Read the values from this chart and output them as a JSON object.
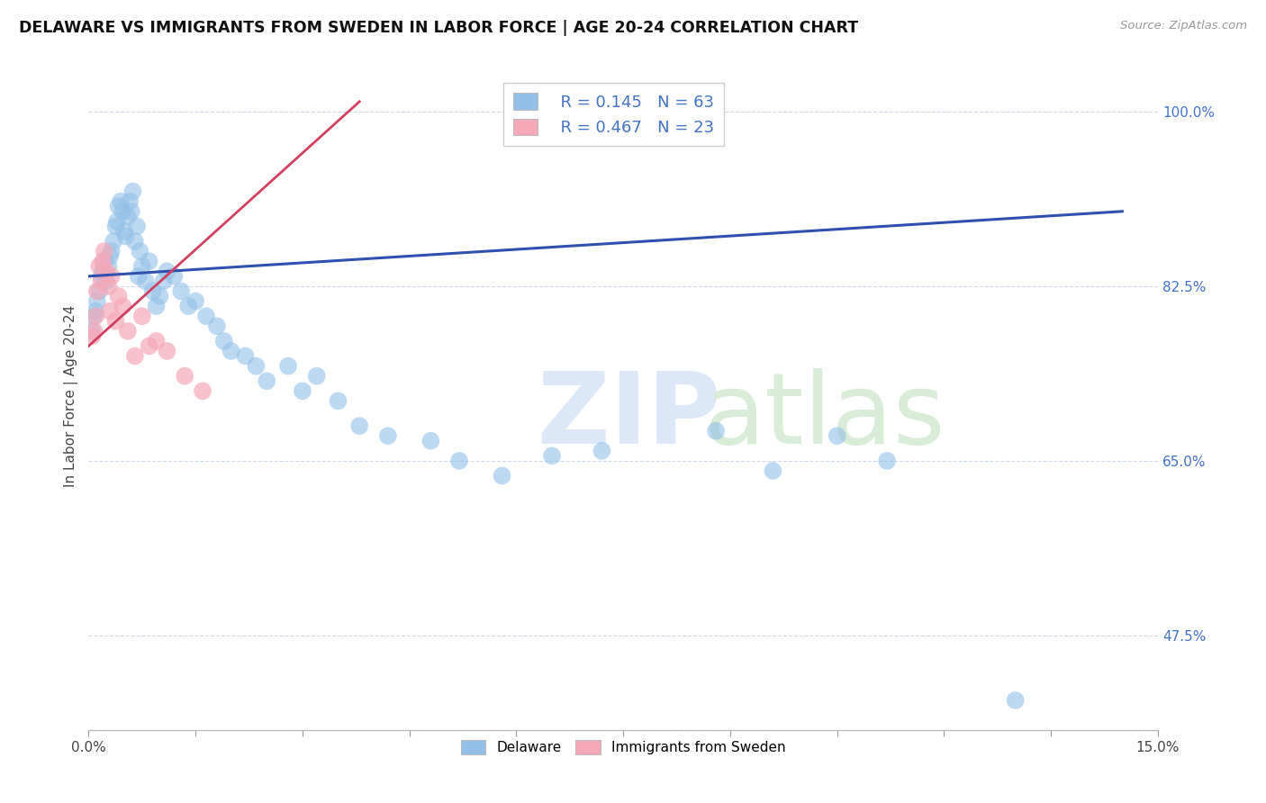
{
  "title": "DELAWARE VS IMMIGRANTS FROM SWEDEN IN LABOR FORCE | AGE 20-24 CORRELATION CHART",
  "source": "Source: ZipAtlas.com",
  "ylabel": "In Labor Force | Age 20-24",
  "xlim": [
    0.0,
    15.0
  ],
  "ylim": [
    38.0,
    105.0
  ],
  "yticks_right": [
    47.5,
    65.0,
    82.5,
    100.0
  ],
  "ytick_right_labels": [
    "47.5%",
    "65.0%",
    "82.5%",
    "100.0%"
  ],
  "blue_color": "#92c0e8",
  "pink_color": "#f5a8b8",
  "blue_line_color": "#3050b0",
  "pink_line_color": "#d04060",
  "background_color": "#ffffff",
  "grid_color": "#c8d4e8",
  "blue_scatter_x": [
    0.05,
    0.08,
    0.1,
    0.12,
    0.15,
    0.18,
    0.2,
    0.22,
    0.25,
    0.28,
    0.3,
    0.32,
    0.35,
    0.38,
    0.4,
    0.42,
    0.45,
    0.48,
    0.5,
    0.52,
    0.55,
    0.58,
    0.6,
    0.62,
    0.65,
    0.68,
    0.7,
    0.72,
    0.75,
    0.8,
    0.85,
    0.9,
    0.95,
    1.0,
    1.05,
    1.1,
    1.2,
    1.3,
    1.4,
    1.5,
    1.65,
    1.8,
    1.9,
    2.0,
    2.2,
    2.35,
    2.5,
    2.8,
    3.0,
    3.2,
    3.5,
    3.8,
    4.2,
    4.8,
    5.2,
    5.8,
    6.5,
    7.2,
    8.8,
    9.6,
    10.5,
    11.2,
    13.0
  ],
  "blue_scatter_y": [
    78.0,
    79.5,
    80.0,
    81.0,
    82.0,
    83.5,
    84.0,
    85.0,
    83.0,
    84.5,
    85.5,
    86.0,
    87.0,
    88.5,
    89.0,
    90.5,
    91.0,
    90.0,
    88.0,
    87.5,
    89.5,
    91.0,
    90.0,
    92.0,
    87.0,
    88.5,
    83.5,
    86.0,
    84.5,
    83.0,
    85.0,
    82.0,
    80.5,
    81.5,
    83.0,
    84.0,
    83.5,
    82.0,
    80.5,
    81.0,
    79.5,
    78.5,
    77.0,
    76.0,
    75.5,
    74.5,
    73.0,
    74.5,
    72.0,
    73.5,
    71.0,
    68.5,
    67.5,
    67.0,
    65.0,
    63.5,
    65.5,
    66.0,
    68.0,
    64.0,
    67.5,
    65.0,
    41.0
  ],
  "pink_scatter_x": [
    0.05,
    0.08,
    0.1,
    0.12,
    0.15,
    0.18,
    0.2,
    0.22,
    0.25,
    0.28,
    0.3,
    0.32,
    0.38,
    0.42,
    0.48,
    0.55,
    0.65,
    0.75,
    0.85,
    0.95,
    1.1,
    1.35,
    1.6
  ],
  "pink_scatter_y": [
    77.5,
    78.0,
    79.5,
    82.0,
    84.5,
    83.0,
    85.0,
    86.0,
    84.0,
    82.5,
    80.0,
    83.5,
    79.0,
    81.5,
    80.5,
    78.0,
    75.5,
    79.5,
    76.5,
    77.0,
    76.0,
    73.5,
    72.0
  ],
  "blue_trend_x0": 0.0,
  "blue_trend_x1": 14.5,
  "blue_trend_y0": 83.5,
  "blue_trend_y1": 90.0,
  "pink_trend_x0": 0.0,
  "pink_trend_x1": 3.8,
  "pink_trend_y0": 76.5,
  "pink_trend_y1": 101.0,
  "legend_r1": "R = 0.145",
  "legend_n1": "N = 63",
  "legend_r2": "R = 0.467",
  "legend_n2": "N = 23",
  "legend_r_color": "#4472c4",
  "watermark_zip_color": "#dce8f8",
  "watermark_atlas_color": "#d8ecd8"
}
